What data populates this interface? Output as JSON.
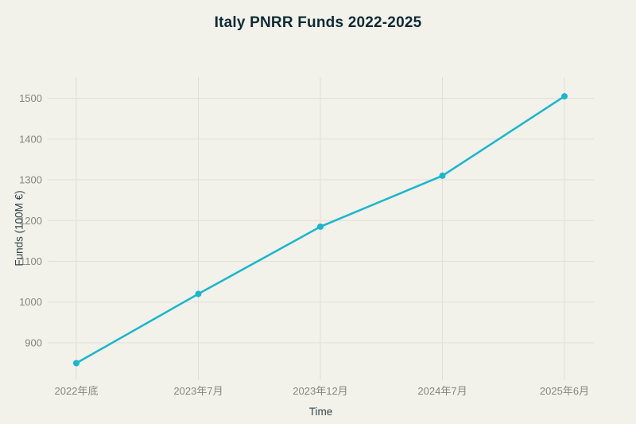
{
  "chart_data": {
    "type": "line",
    "title": "Italy PNRR Funds 2022-2025",
    "xlabel": "Time",
    "ylabel": "Funds (100M €)",
    "categories": [
      "2022年底",
      "2023年7月",
      "2023年12月",
      "2024年7月",
      "2025年6月"
    ],
    "values": [
      850,
      1020,
      1185,
      1310,
      1505
    ],
    "yticks": [
      900,
      1000,
      1100,
      1200,
      1300,
      1400,
      1500
    ],
    "ylim": [
      810,
      1552
    ],
    "grid": true,
    "legend": false
  },
  "colors": {
    "background": "#f2f1ea",
    "line": "#18b7cd",
    "marker": "#18b7cd",
    "grid": "#e1dfd6",
    "tick_label": "#878780",
    "title": "#0e2b34",
    "axis_title": "#31484f"
  }
}
